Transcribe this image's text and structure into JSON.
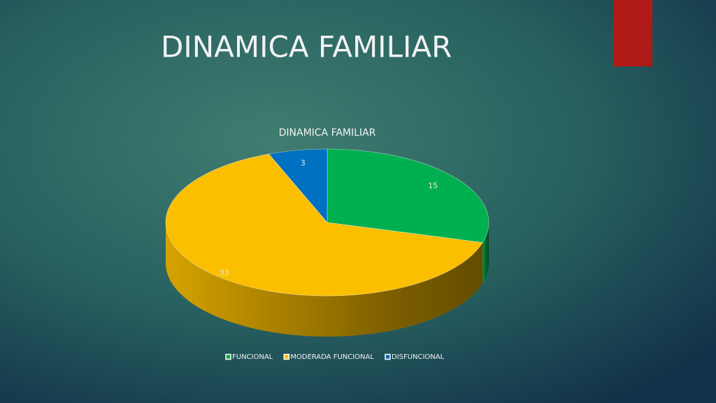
{
  "slide_title": "DINAMICA FAMILIAR",
  "chart_data": {
    "type": "pie",
    "title": "DINAMICA FAMILIAR",
    "categories": [
      "FUNCIONAL",
      "MODERADA FUNCIONAL",
      "DISFUNCIONAL"
    ],
    "values": [
      15,
      33,
      3
    ],
    "colors": [
      "#00b050",
      "#fbbf00",
      "#0070c0"
    ],
    "legend": "bottom"
  }
}
